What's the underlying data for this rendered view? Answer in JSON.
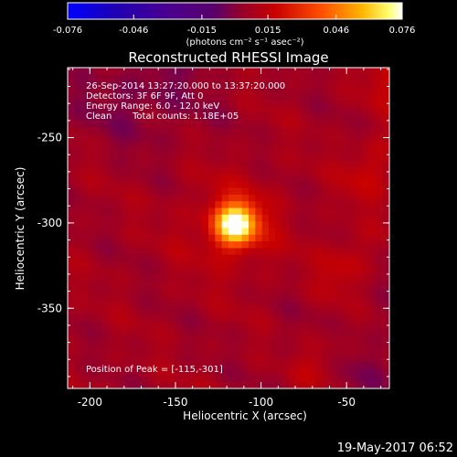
{
  "chart_data": {
    "type": "heatmap",
    "title": "Reconstructed RHESSI Image",
    "xlabel": "Heliocentric X (arcsec)",
    "ylabel": "Heliocentric Y (arcsec)",
    "xlim": [
      -213,
      -25
    ],
    "ylim": [
      -397,
      -209
    ],
    "x_ticks": [
      "-200",
      "-150",
      "-100",
      "-50"
    ],
    "x_tick_values": [
      -200,
      -150,
      -100,
      -50
    ],
    "y_ticks": [
      "-250",
      "-300",
      "-350"
    ],
    "y_tick_values": [
      -250,
      -300,
      -350
    ],
    "colorbar": {
      "ticks": [
        "-0.076",
        "-0.046",
        "-0.015",
        "0.015",
        "0.046",
        "0.076"
      ],
      "tick_values": [
        -0.076,
        -0.046,
        -0.015,
        0.015,
        0.046,
        0.076
      ],
      "range": [
        -0.076,
        0.076
      ],
      "units_label": "(photons cm⁻² s⁻¹ asec⁻²)"
    },
    "annotations": {
      "time_range": "26-Sep-2014 13:27:20.000 to 13:37:20.000",
      "detectors": "Detectors: 3F 6F 9F, Att 0",
      "energy": "Energy Range: 6.0 - 12.0 keV",
      "method": "Clean",
      "counts": "Total counts: 1.18E+05",
      "peak": "Position of Peak = [-115,-301]"
    },
    "peak": {
      "x": -115,
      "y": -301,
      "value": 0.076
    },
    "timestamp": "19-May-2017 06:52"
  }
}
